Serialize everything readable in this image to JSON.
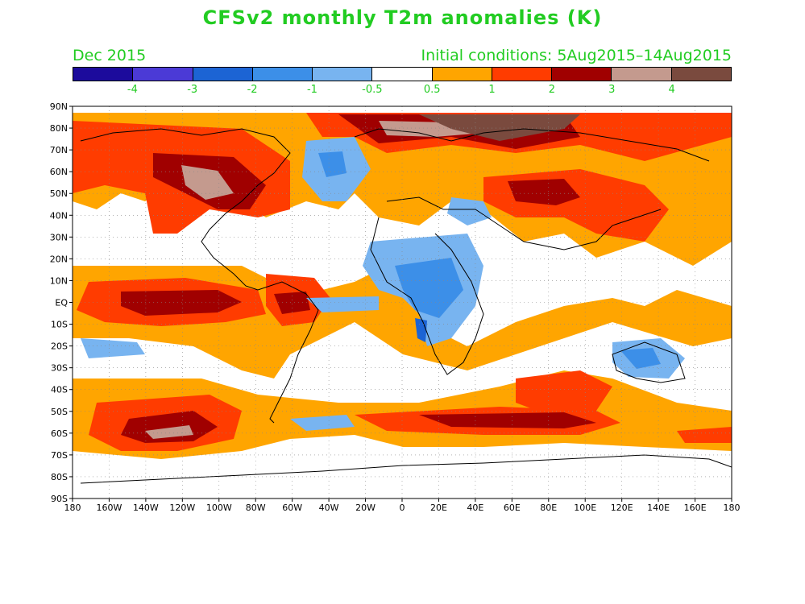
{
  "title": "CFSv2 monthly T2m anomalies (K)",
  "valid_month": "Dec 2015",
  "initial_conditions": "Initial conditions: 5Aug2015–14Aug2015",
  "colorbar": {
    "colors": [
      "#1c0b9c",
      "#4b3ad6",
      "#1c64d4",
      "#3c8fe8",
      "#78b4f0",
      "#ffffff",
      "#ffa500",
      "#ff3c00",
      "#a00000",
      "#c49a8e",
      "#7a4a3e"
    ],
    "labels": [
      "-4",
      "-3",
      "-2",
      "-1",
      "-0.5",
      "0.5",
      "1",
      "2",
      "3",
      "4"
    ]
  },
  "map": {
    "lat_labels": [
      "90N",
      "80N",
      "70N",
      "60N",
      "50N",
      "40N",
      "30N",
      "20N",
      "10N",
      "EQ",
      "10S",
      "20S",
      "30S",
      "40S",
      "50S",
      "60S",
      "70S",
      "80S",
      "90S"
    ],
    "lon_labels": [
      "180",
      "160W",
      "140W",
      "120W",
      "100W",
      "80W",
      "60W",
      "40W",
      "20W",
      "0",
      "20E",
      "40E",
      "60E",
      "80E",
      "100E",
      "120E",
      "140E",
      "160E",
      "180"
    ]
  }
}
